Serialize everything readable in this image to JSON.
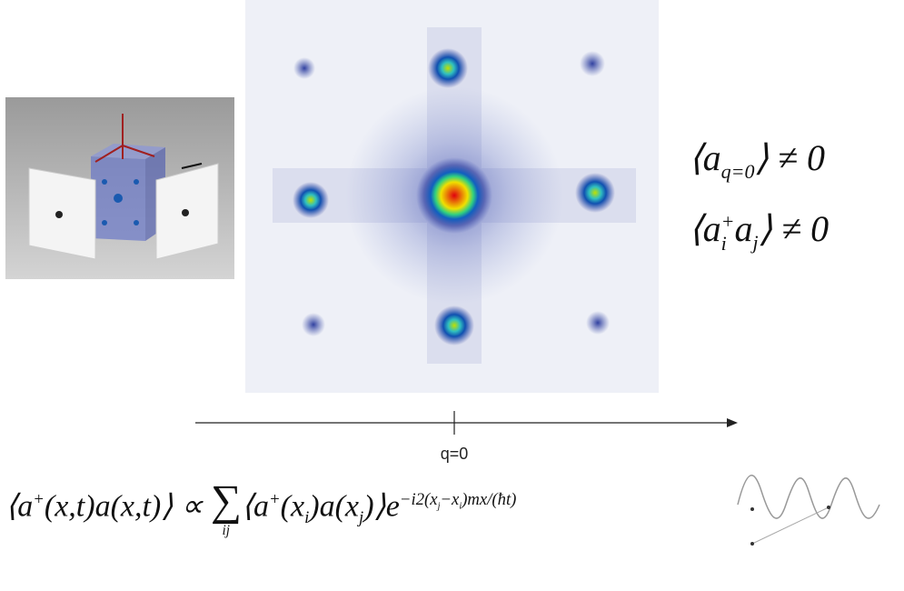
{
  "axis_label": "q=0",
  "equations": [
    [
      {
        "t": "⟨a"
      },
      {
        "sub": "q=0"
      },
      {
        "t": "⟩ ≠ 0"
      }
    ],
    [
      {
        "t": "⟨a"
      },
      {
        "subsup": [
          "i",
          "+"
        ]
      },
      {
        "t": "a"
      },
      {
        "sub": "j"
      },
      {
        "t": "⟩ ≠ 0"
      }
    ],
    [
      {
        "t": "⟨a"
      },
      {
        "sup": "+"
      },
      {
        "t": "(x,t)a(x,t)⟩ ∝ "
      },
      {
        "op": "∑",
        "under": "ij"
      },
      {
        "t": "⟨a"
      },
      {
        "sup": "+"
      },
      {
        "t": "(x"
      },
      {
        "sub": "i"
      },
      {
        "t": ")a(x"
      },
      {
        "sub": "j"
      },
      {
        "t": ")⟩e"
      },
      {
        "sup": "−i2(x"
      },
      {
        "supsub": "j"
      },
      {
        "sup": "−x"
      },
      {
        "supsub": "i"
      },
      {
        "sup": ")mx/(ħt)"
      }
    ]
  ]
}
